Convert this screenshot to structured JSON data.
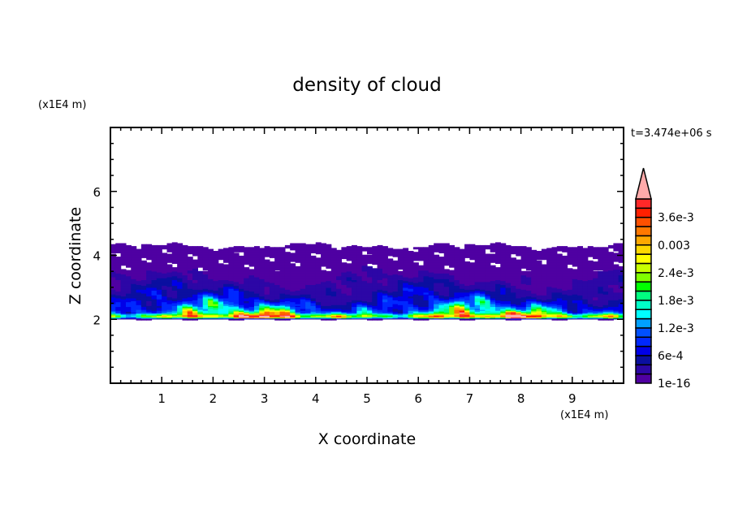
{
  "chart_data": {
    "type": "heatmap",
    "title": "density of cloud",
    "xlabel": "X coordinate",
    "ylabel": "Z coordinate",
    "x_unit": "(x1E4 m)",
    "y_unit": "(x1E4 m)",
    "time_label": "t=3.474e+06 s",
    "xlim": [
      0,
      10
    ],
    "ylim": [
      0,
      8
    ],
    "x_ticks": [
      "1",
      "2",
      "3",
      "4",
      "5",
      "6",
      "7",
      "8",
      "9"
    ],
    "y_ticks": [
      "2",
      "4",
      "6"
    ],
    "grid": false,
    "colorbar": {
      "levels": [
        1e-16,
        0.0002,
        0.0004,
        0.0006,
        0.0008,
        0.001,
        0.0012,
        0.0014,
        0.0016,
        0.0018,
        0.002,
        0.0022,
        0.0024,
        0.0026,
        0.0028,
        0.003,
        0.0032,
        0.0034,
        0.0036,
        0.0038
      ],
      "labels": [
        "1e-16",
        "6e-4",
        "1.2e-3",
        "1.8e-3",
        "2.4e-3",
        "0.003",
        "3.6e-3"
      ],
      "label_level_index": [
        0,
        3,
        6,
        9,
        12,
        15,
        18
      ],
      "colors": [
        "#4f00a2",
        "#2c07a6",
        "#0a0fa0",
        "#0000e8",
        "#0028ff",
        "#0050ff",
        "#00a0ff",
        "#00ffff",
        "#00ffc8",
        "#00ff80",
        "#00ff00",
        "#80ff00",
        "#c8ff00",
        "#ffff00",
        "#ffd800",
        "#ffa800",
        "#ff7800",
        "#ff5000",
        "#ff2000",
        "#ff2828"
      ],
      "overflow_color": "#ffaaaa",
      "extend": "max"
    },
    "field": {
      "description_profile_z": [
        2.0,
        2.02,
        2.06,
        2.1,
        2.14,
        2.2,
        2.3,
        2.5,
        2.7,
        3.0,
        3.4,
        3.8,
        4.3
      ],
      "description_profile_density": [
        0.0001,
        0.0002,
        0.0022,
        0.003,
        0.0026,
        0.0017,
        0.0012,
        0.0008,
        0.0005,
        0.0003,
        0.00015,
        5e-05,
        2e-05
      ],
      "cloud_base_z": 2.0,
      "cloud_top_z": 4.3
    }
  }
}
